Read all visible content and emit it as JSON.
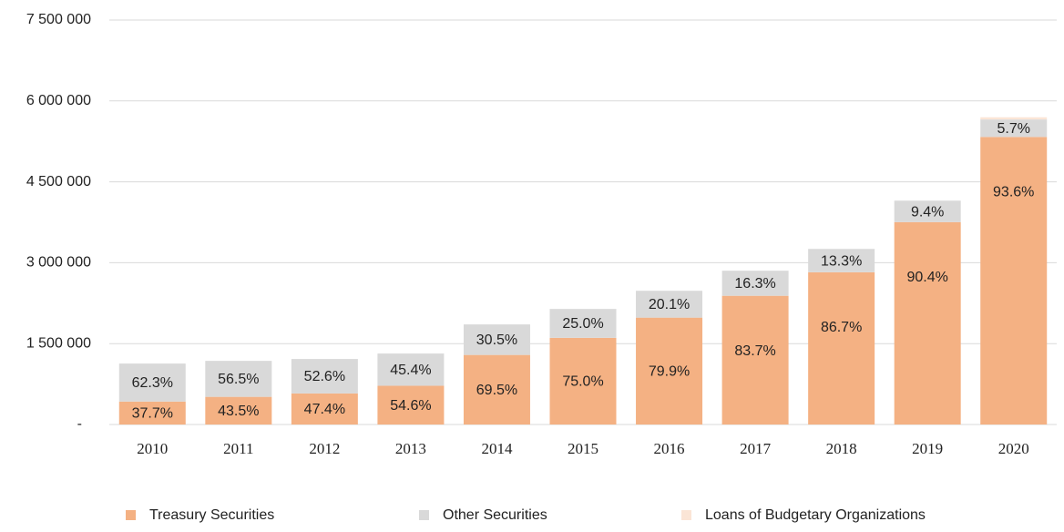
{
  "chart_data": {
    "type": "stacked_bar",
    "categories": [
      "2010",
      "2011",
      "2012",
      "2013",
      "2014",
      "2015",
      "2016",
      "2017",
      "2018",
      "2019",
      "2020"
    ],
    "series": [
      {
        "name": "Treasury Securities",
        "color": "#f4b183",
        "values": [
          426000,
          513000,
          576000,
          719000,
          1290000,
          1607000,
          1982000,
          2387000,
          2823000,
          3753000,
          5332000
        ],
        "percent_labels": [
          "37.7%",
          "43.5%",
          "47.4%",
          "54.6%",
          "69.5%",
          "75.0%",
          "79.9%",
          "83.7%",
          "86.7%",
          "90.4%",
          "93.6%"
        ]
      },
      {
        "name": "Other Securities",
        "color": "#d9d9d9",
        "values": [
          704000,
          667000,
          639000,
          597000,
          566000,
          536000,
          498000,
          465000,
          433000,
          398000,
          325000
        ],
        "percent_labels": [
          "62.3%",
          "56.5%",
          "52.6%",
          "45.4%",
          "30.5%",
          "25.0%",
          "20.1%",
          "16.3%",
          "13.3%",
          "9.4%",
          "5.7%"
        ]
      },
      {
        "name": "Loans of Budgetary Organizations",
        "color": "#fbe5d6",
        "values": [
          0,
          0,
          0,
          0,
          0,
          0,
          0,
          0,
          0,
          0,
          40000
        ]
      }
    ],
    "ylim": [
      0,
      7500000
    ],
    "yticks": [
      {
        "value": 0,
        "label": "-"
      },
      {
        "value": 1500000,
        "label": "1 500 000"
      },
      {
        "value": 3000000,
        "label": "3 000 000"
      },
      {
        "value": 4500000,
        "label": "4 500 000"
      },
      {
        "value": 6000000,
        "label": "6 000 000"
      },
      {
        "value": 7500000,
        "label": "7 500 000"
      }
    ],
    "grid": true,
    "legend": "bottom"
  }
}
